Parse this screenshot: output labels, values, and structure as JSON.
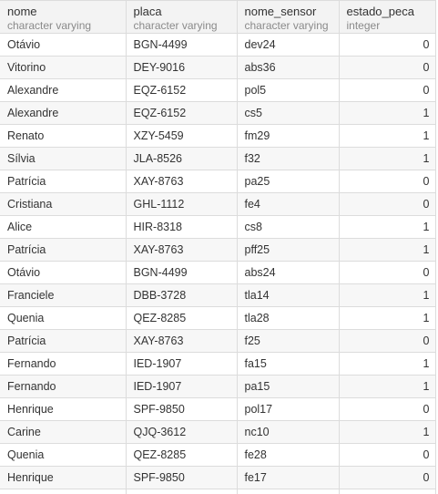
{
  "columns": [
    {
      "name": "nome",
      "type": "character varying"
    },
    {
      "name": "placa",
      "type": "character varying"
    },
    {
      "name": "nome_sensor",
      "type": "character varying"
    },
    {
      "name": "estado_peca",
      "type": "integer"
    }
  ],
  "rows": [
    [
      "Otávio",
      "BGN-4499",
      "dev24",
      "0"
    ],
    [
      "Vitorino",
      "DEY-9016",
      "abs36",
      "0"
    ],
    [
      "Alexandre",
      "EQZ-6152",
      "pol5",
      "0"
    ],
    [
      "Alexandre",
      "EQZ-6152",
      "cs5",
      "1"
    ],
    [
      "Renato",
      "XZY-5459",
      "fm29",
      "1"
    ],
    [
      "Sílvia",
      "JLA-8526",
      "f32",
      "1"
    ],
    [
      "Patrícia",
      "XAY-8763",
      "pa25",
      "0"
    ],
    [
      "Cristiana",
      "GHL-1112",
      "fe4",
      "0"
    ],
    [
      "Alice",
      "HIR-8318",
      "cs8",
      "1"
    ],
    [
      "Patrícia",
      "XAY-8763",
      "pff25",
      "1"
    ],
    [
      "Otávio",
      "BGN-4499",
      "abs24",
      "0"
    ],
    [
      "Franciele",
      "DBB-3728",
      "tla14",
      "1"
    ],
    [
      "Quenia",
      "QEZ-8285",
      "tla28",
      "1"
    ],
    [
      "Patrícia",
      "XAY-8763",
      "f25",
      "0"
    ],
    [
      "Fernando",
      "IED-1907",
      "fa15",
      "1"
    ],
    [
      "Fernando",
      "IED-1907",
      "pa15",
      "1"
    ],
    [
      "Henrique",
      "SPF-9850",
      "pol17",
      "0"
    ],
    [
      "Carine",
      "QJQ-3612",
      "nc10",
      "1"
    ],
    [
      "Quenia",
      "QEZ-8285",
      "fe28",
      "0"
    ],
    [
      "Henrique",
      "SPF-9850",
      "fe17",
      "0"
    ],
    [
      "",
      "",
      "",
      ""
    ]
  ]
}
